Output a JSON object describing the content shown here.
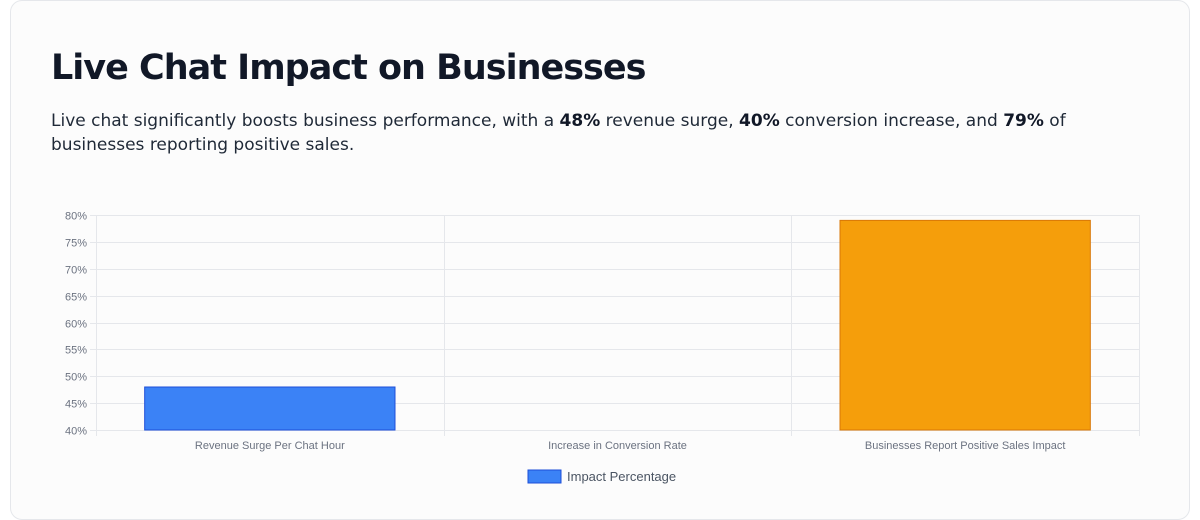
{
  "header": {
    "title": "Live Chat Impact on Businesses",
    "subtitle_parts": [
      {
        "text": "Live chat significantly boosts business performance, with a ",
        "bold": false
      },
      {
        "text": "48%",
        "bold": true
      },
      {
        "text": " revenue surge, ",
        "bold": false
      },
      {
        "text": "40%",
        "bold": true
      },
      {
        "text": " conversion increase, and ",
        "bold": false
      },
      {
        "text": "79%",
        "bold": true
      },
      {
        "text": " of businesses reporting positive sales.",
        "bold": false
      }
    ]
  },
  "colors": {
    "blue": "#3b82f6",
    "blue_border": "#1d4ed8",
    "orange": "#f59e0b",
    "orange_border": "#d97706",
    "grid": "#e5e7eb"
  },
  "chart_data": {
    "type": "bar",
    "categories": [
      "Revenue Surge Per Chat Hour",
      "Increase in Conversion Rate",
      "Businesses Report Positive Sales Impact"
    ],
    "series": [
      {
        "name": "Impact Percentage",
        "values": [
          48,
          40,
          79
        ],
        "colors": [
          "#3b82f6",
          "#3b82f6",
          "#f59e0b"
        ]
      }
    ],
    "ylim": [
      40,
      80
    ],
    "yticks": [
      40,
      45,
      50,
      55,
      60,
      65,
      70,
      75,
      80
    ],
    "ytick_labels": [
      "40%",
      "45%",
      "50%",
      "55%",
      "60%",
      "65%",
      "70%",
      "75%",
      "80%"
    ],
    "grid": true,
    "legend_position": "bottom"
  }
}
